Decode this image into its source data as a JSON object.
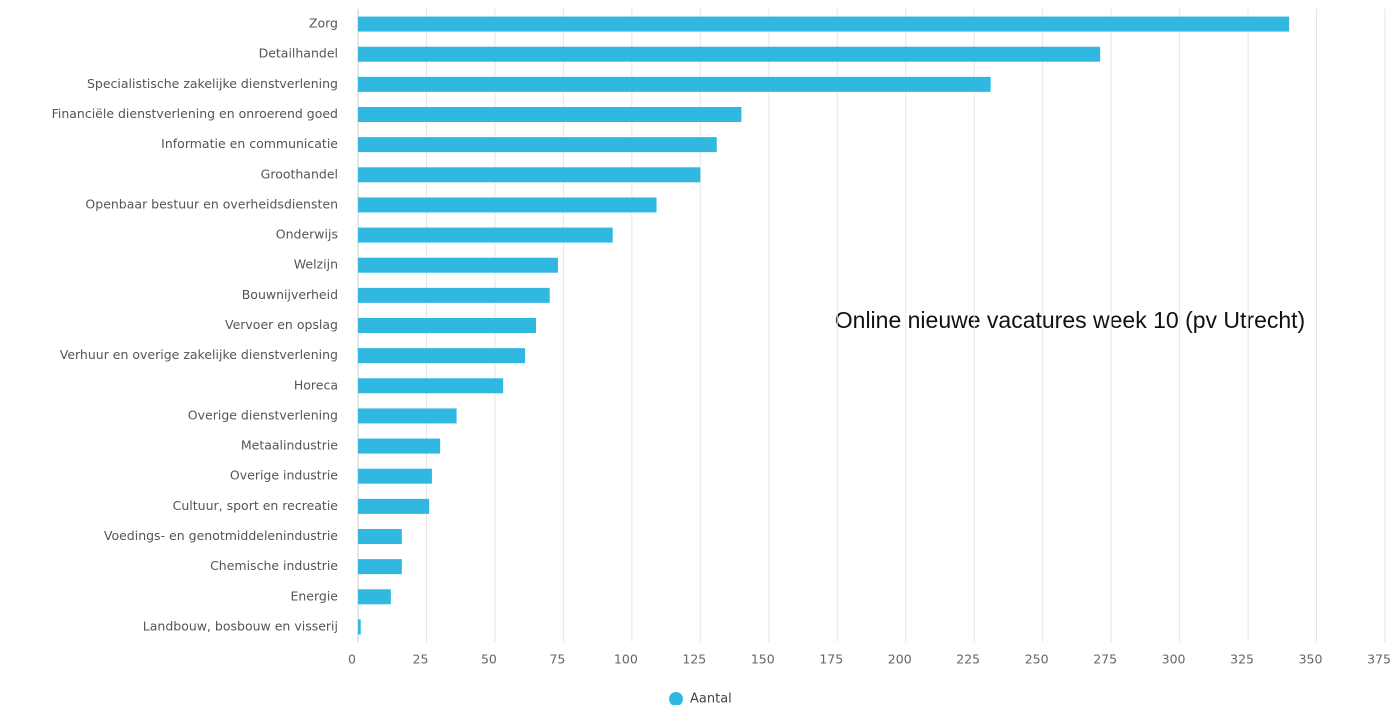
{
  "chart_data": {
    "type": "bar",
    "orientation": "horizontal",
    "annotation": "Online nieuwe vacatures week 10 (pv Utrecht)",
    "categories": [
      "Zorg",
      "Detailhandel",
      "Specialistische zakelijke dienstverlening",
      "Financiële dienstverlening en onroerend goed",
      "Informatie en communicatie",
      "Groothandel",
      "Openbaar bestuur en overheidsdiensten",
      "Onderwijs",
      "Welzijn",
      "Bouwnijverheid",
      "Vervoer en opslag",
      "Verhuur en overige zakelijke dienstverlening",
      "Horeca",
      "Overige dienstverlening",
      "Metaalindustrie",
      "Overige industrie",
      "Cultuur, sport en recreatie",
      "Voedings- en genotmiddelenindustrie",
      "Chemische industrie",
      "Energie",
      "Landbouw, bosbouw en visserij"
    ],
    "series": [
      {
        "name": "Aantal",
        "color": "#31b8e0",
        "values": [
          340,
          271,
          231,
          140,
          131,
          125,
          109,
          93,
          73,
          70,
          65,
          61,
          53,
          36,
          30,
          27,
          26,
          16,
          16,
          12,
          1
        ]
      }
    ],
    "xlim": [
      0,
      375
    ],
    "xticks": [
      0,
      25,
      50,
      75,
      100,
      125,
      150,
      175,
      200,
      225,
      250,
      275,
      300,
      325,
      350,
      375
    ],
    "grid": true,
    "legend": "bottom"
  }
}
